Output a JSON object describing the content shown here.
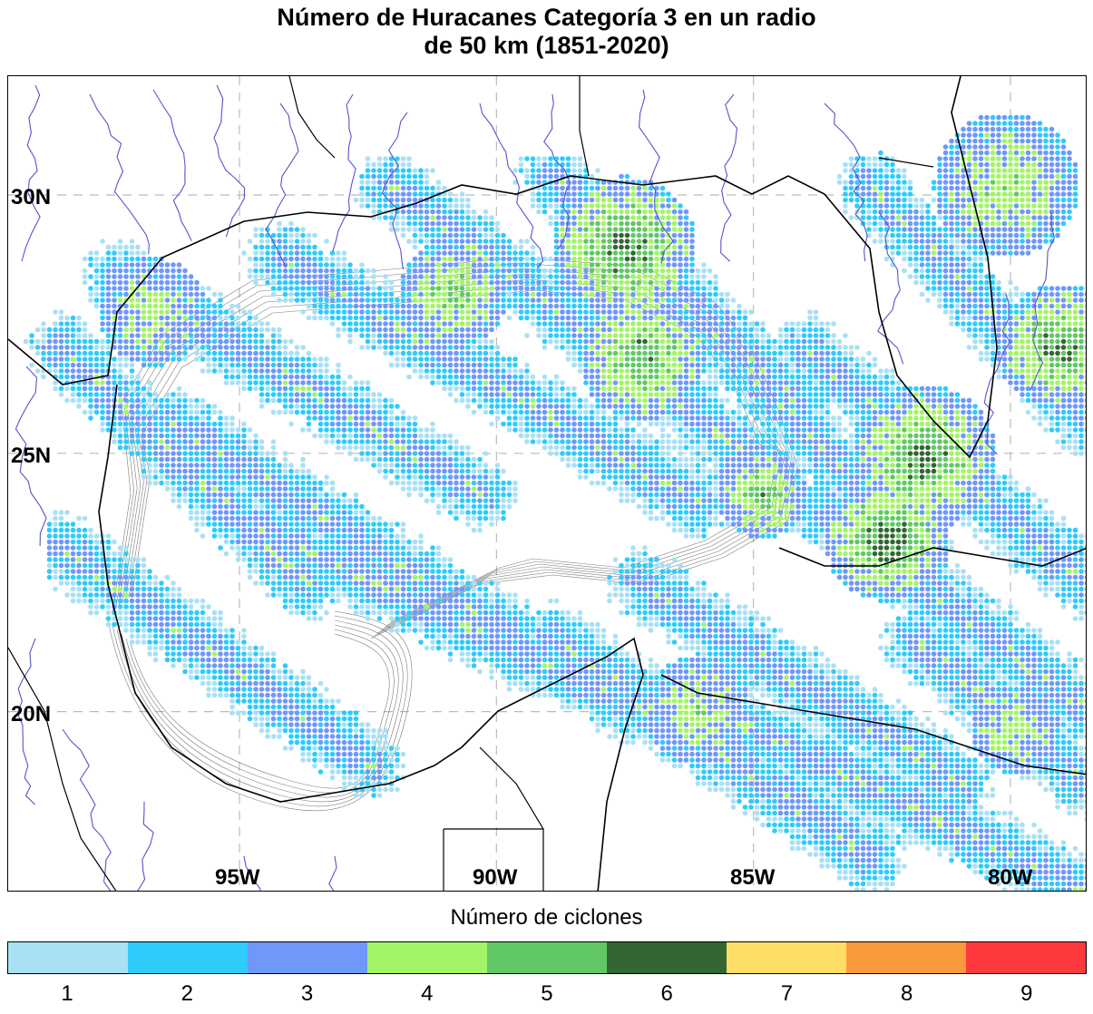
{
  "title": {
    "line1": "Número de Huracanes Categoría 3 en un radio",
    "line2": "de 50 km (1851-2020)"
  },
  "map": {
    "lat_labels": [
      "30N",
      "25N",
      "20N"
    ],
    "lon_labels": [
      "95W",
      "90W",
      "85W",
      "80W"
    ],
    "extent": {
      "lon_min": -99.5,
      "lon_max": -78.5,
      "lat_min": 16.5,
      "lat_max": 32.3
    },
    "colors": {
      "land_outline": "#000000",
      "rivers": "#5555cc",
      "bathymetry": "#444444",
      "grid": "#bbbbbb"
    }
  },
  "legend": {
    "title": "Número de ciclones",
    "bins": [
      {
        "label": "1",
        "color": "#a8e0f4"
      },
      {
        "label": "2",
        "color": "#2ecbfb"
      },
      {
        "label": "3",
        "color": "#6f98fa"
      },
      {
        "label": "4",
        "color": "#a3f466"
      },
      {
        "label": "5",
        "color": "#61c866"
      },
      {
        "label": "6",
        "color": "#336633"
      },
      {
        "label": "7",
        "color": "#fede66"
      },
      {
        "label": "8",
        "color": "#fb9a3d"
      },
      {
        "label": "9",
        "color": "#fe3a3e"
      }
    ]
  }
}
